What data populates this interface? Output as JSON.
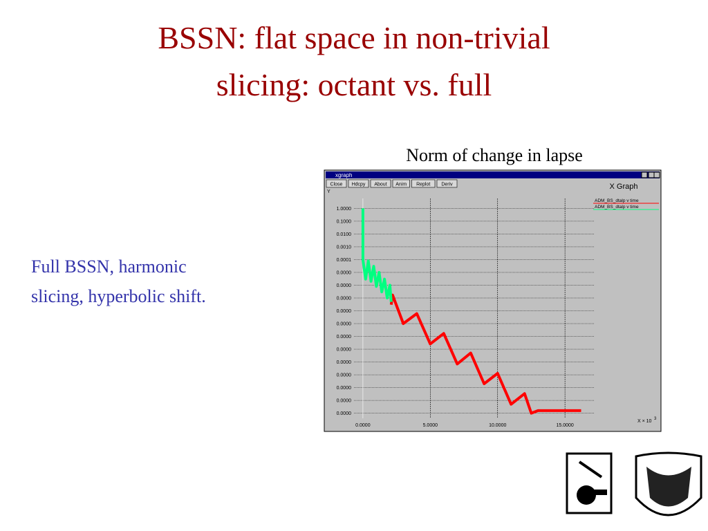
{
  "slide": {
    "title_lines": [
      "BSSN: flat space in non-trivial",
      "slicing: octant vs. full"
    ],
    "caption": "Norm of change in lapse",
    "body_lines": [
      "Full BSSN, harmonic",
      "slicing, hyperbolic shift."
    ]
  },
  "window": {
    "title": "xgraph",
    "buttons": [
      "Close",
      "Hdcpy",
      "About",
      "Anim",
      "Replot",
      "Deriv"
    ],
    "heading": "X Graph"
  },
  "chart_data": {
    "type": "line",
    "y_label": "Y",
    "x_label": "X × 10",
    "x_label_exponent": "3",
    "log_y": true,
    "grid": true,
    "legend": "top-right",
    "xlim": [
      -2.15,
      17.2
    ],
    "ylim": [
      4e-17,
      6
    ],
    "xticks": [
      {
        "value": 0,
        "label": "0.0000"
      },
      {
        "value": 5,
        "label": "5.0000"
      },
      {
        "value": 10,
        "label": "10.0000"
      },
      {
        "value": 15,
        "label": "15.0000"
      }
    ],
    "yticks": [
      {
        "value": 1,
        "label": "1.0000"
      },
      {
        "value": 0.1,
        "label": "0.1000"
      },
      {
        "value": 0.01,
        "label": "0.0100"
      },
      {
        "value": 0.001,
        "label": "0.0010"
      },
      {
        "value": 0.0001,
        "label": "0.0001"
      },
      {
        "value": 1e-05,
        "label": "0.0000"
      },
      {
        "value": 1e-06,
        "label": "0.0000"
      },
      {
        "value": 1e-07,
        "label": "0.0000"
      },
      {
        "value": 1e-08,
        "label": "0.0000"
      },
      {
        "value": 1e-09,
        "label": "0.0000"
      },
      {
        "value": 1e-10,
        "label": "0.0000"
      },
      {
        "value": 1e-11,
        "label": "0.0000"
      },
      {
        "value": 1e-12,
        "label": "0.0000"
      },
      {
        "value": 1e-13,
        "label": "0.0000"
      },
      {
        "value": 1e-14,
        "label": "0.0000"
      },
      {
        "value": 1e-15,
        "label": "0.0000"
      },
      {
        "value": 1e-16,
        "label": "0.0000"
      }
    ],
    "series": [
      {
        "name": "ADM_BS_dtalp v time",
        "color": "#ff0000",
        "x": [
          2.1,
          2.2,
          3,
          4,
          5,
          6,
          7,
          8,
          9,
          10,
          11,
          12,
          12.5,
          13,
          16.2
        ],
        "values": [
          3e-08,
          1.7e-07,
          1e-09,
          6e-09,
          2.6e-11,
          1.7e-10,
          7e-13,
          5e-12,
          2e-14,
          1.3e-13,
          5e-16,
          3.4e-15,
          1e-16,
          1.6e-16,
          1.6e-16
        ]
      },
      {
        "name": "ADM_BS_dtalp v time",
        "color": "#00ff80",
        "x": [
          0,
          0,
          0.2,
          0.4,
          0.6,
          0.8,
          1.0,
          1.2,
          1.4,
          1.6,
          1.8,
          2.0,
          2.1
        ],
        "values": [
          1,
          0.0001,
          3e-06,
          8e-05,
          2e-06,
          3e-05,
          8e-07,
          1e-05,
          3e-07,
          3e-06,
          1e-07,
          1e-06,
          5e-08
        ]
      }
    ]
  }
}
